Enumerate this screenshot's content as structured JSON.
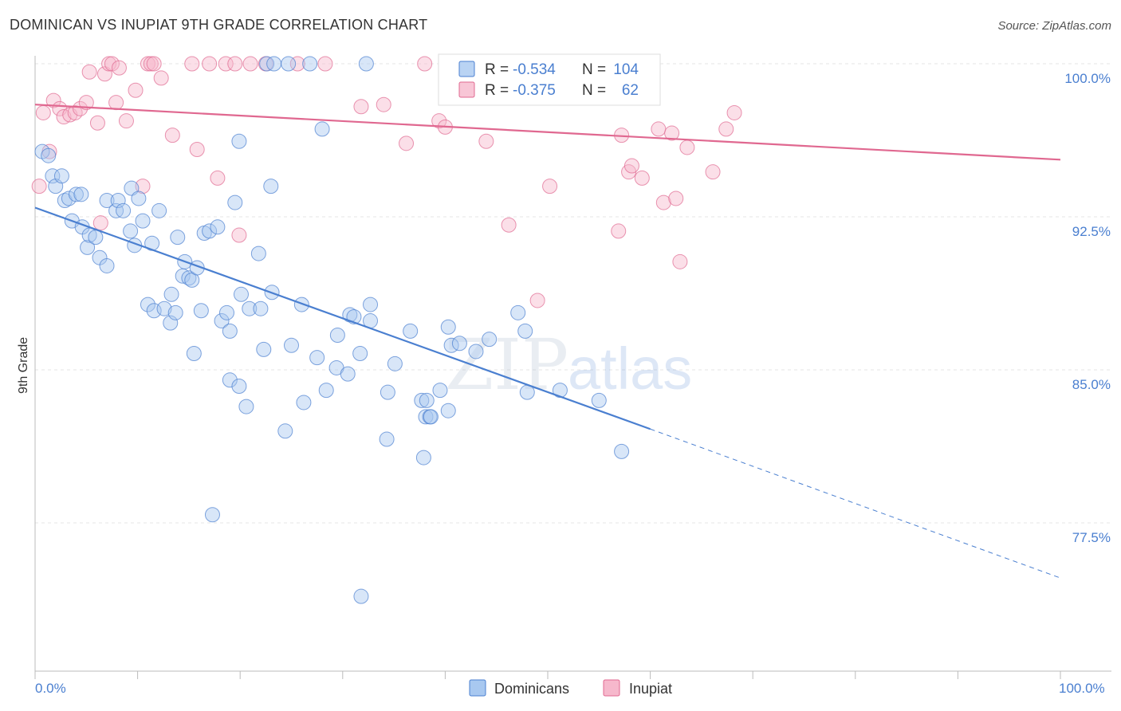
{
  "header": {
    "title": "DOMINICAN VS INUPIAT 9TH GRADE CORRELATION CHART",
    "source": "Source: ZipAtlas.com"
  },
  "watermark": {
    "zip": "ZIP",
    "atlas": "atlas"
  },
  "colors": {
    "dominicans": "#4a7fd0",
    "dominicans_fill": "#a8c8f0",
    "inupiat": "#e06890",
    "inupiat_fill": "#f6b8cc",
    "label_blue": "#4a7fd0"
  },
  "stats": {
    "dominicans": {
      "r_label": "R =",
      "r_value": "-0.534",
      "n_label": "N =",
      "n_value": "104"
    },
    "inupiat": {
      "r_label": "R =",
      "r_value": "-0.375",
      "n_label": "N =",
      "n_value": "62"
    }
  },
  "legend": {
    "dominicans": "Dominicans",
    "inupiat": "Inupiat"
  },
  "chart_data": {
    "type": "scatter",
    "title": "DOMINICAN VS INUPIAT 9TH GRADE CORRELATION CHART",
    "xlabel": "",
    "ylabel": "9th Grade",
    "xlim": [
      0,
      100
    ],
    "ylim": [
      70.0,
      100.5
    ],
    "x_tick_labels": [
      "0.0%",
      "100.0%"
    ],
    "y_ticks": [
      {
        "value": 100.0,
        "label": "100.0%"
      },
      {
        "value": 92.5,
        "label": "92.5%"
      },
      {
        "value": 85.0,
        "label": "85.0%"
      },
      {
        "value": 77.5,
        "label": "77.5%"
      }
    ],
    "grid": true,
    "legend_position": "bottom-center",
    "series": [
      {
        "name": "Dominicans",
        "trend": {
          "x0": 0,
          "y0": 92.95,
          "x1": 60,
          "y1": 82.1,
          "dash_to_x": 100,
          "dash_to_y": 74.8
        },
        "points": [
          [
            0.7,
            95.7
          ],
          [
            1.3,
            95.5
          ],
          [
            1.7,
            94.5
          ],
          [
            2.0,
            94.0
          ],
          [
            2.6,
            94.5
          ],
          [
            2.9,
            93.3
          ],
          [
            3.3,
            93.4
          ],
          [
            3.6,
            92.3
          ],
          [
            4.0,
            93.6
          ],
          [
            4.5,
            93.6
          ],
          [
            4.6,
            92.0
          ],
          [
            5.1,
            91.0
          ],
          [
            5.3,
            91.6
          ],
          [
            5.9,
            91.5
          ],
          [
            6.3,
            90.5
          ],
          [
            7.0,
            93.3
          ],
          [
            7.0,
            90.1
          ],
          [
            7.9,
            92.8
          ],
          [
            8.1,
            93.3
          ],
          [
            8.6,
            92.8
          ],
          [
            9.3,
            91.8
          ],
          [
            9.4,
            93.9
          ],
          [
            9.7,
            91.1
          ],
          [
            10.1,
            93.4
          ],
          [
            10.5,
            92.3
          ],
          [
            11.0,
            88.2
          ],
          [
            11.4,
            91.2
          ],
          [
            11.6,
            87.9
          ],
          [
            12.1,
            92.8
          ],
          [
            12.6,
            88.0
          ],
          [
            13.2,
            87.3
          ],
          [
            13.3,
            88.7
          ],
          [
            13.7,
            87.8
          ],
          [
            13.9,
            91.5
          ],
          [
            14.4,
            89.6
          ],
          [
            14.6,
            90.3
          ],
          [
            15.0,
            89.5
          ],
          [
            15.3,
            89.4
          ],
          [
            15.5,
            85.8
          ],
          [
            15.8,
            90.0
          ],
          [
            16.2,
            87.9
          ],
          [
            16.5,
            91.7
          ],
          [
            17.0,
            91.8
          ],
          [
            17.3,
            77.9
          ],
          [
            17.8,
            92.0
          ],
          [
            18.2,
            87.4
          ],
          [
            18.7,
            87.8
          ],
          [
            19.0,
            86.9
          ],
          [
            19.0,
            84.5
          ],
          [
            19.5,
            93.2
          ],
          [
            19.9,
            84.2
          ],
          [
            19.9,
            96.2
          ],
          [
            20.1,
            88.7
          ],
          [
            20.6,
            83.2
          ],
          [
            20.9,
            88.0
          ],
          [
            21.8,
            90.7
          ],
          [
            22.0,
            88.0
          ],
          [
            22.3,
            86.0
          ],
          [
            22.6,
            100.0
          ],
          [
            23.1,
            88.8
          ],
          [
            23.0,
            94.0
          ],
          [
            23.3,
            100.0
          ],
          [
            24.4,
            82.0
          ],
          [
            24.7,
            100.0
          ],
          [
            25.0,
            86.2
          ],
          [
            26.0,
            88.2
          ],
          [
            26.2,
            83.4
          ],
          [
            26.8,
            100.0
          ],
          [
            27.5,
            85.6
          ],
          [
            28.0,
            96.8
          ],
          [
            28.4,
            84.0
          ],
          [
            29.4,
            85.1
          ],
          [
            29.5,
            86.7
          ],
          [
            30.5,
            84.8
          ],
          [
            30.7,
            87.7
          ],
          [
            31.1,
            87.6
          ],
          [
            31.7,
            85.8
          ],
          [
            31.8,
            73.9
          ],
          [
            32.3,
            100.0
          ],
          [
            32.7,
            87.4
          ],
          [
            32.7,
            88.2
          ],
          [
            34.3,
            81.6
          ],
          [
            34.4,
            83.9
          ],
          [
            35.1,
            85.3
          ],
          [
            36.6,
            86.9
          ],
          [
            37.7,
            83.5
          ],
          [
            37.9,
            80.7
          ],
          [
            38.1,
            82.7
          ],
          [
            38.2,
            83.5
          ],
          [
            38.5,
            82.7
          ],
          [
            38.6,
            82.7
          ],
          [
            39.5,
            84.0
          ],
          [
            40.3,
            83.0
          ],
          [
            40.3,
            87.1
          ],
          [
            40.6,
            86.2
          ],
          [
            41.4,
            86.3
          ],
          [
            43.0,
            85.9
          ],
          [
            44.3,
            86.5
          ],
          [
            47.1,
            87.8
          ],
          [
            47.8,
            86.9
          ],
          [
            48.0,
            83.9
          ],
          [
            51.2,
            84.0
          ],
          [
            55.0,
            83.5
          ],
          [
            57.2,
            81.0
          ]
        ]
      },
      {
        "name": "Inupiat",
        "trend": {
          "x0": 0,
          "y0": 98.0,
          "x1": 100,
          "y1": 95.3
        },
        "points": [
          [
            0.4,
            94.0
          ],
          [
            0.8,
            97.6
          ],
          [
            1.4,
            95.7
          ],
          [
            1.8,
            98.2
          ],
          [
            2.4,
            97.8
          ],
          [
            2.8,
            97.4
          ],
          [
            3.4,
            97.5
          ],
          [
            3.9,
            97.6
          ],
          [
            4.4,
            97.8
          ],
          [
            5.0,
            98.1
          ],
          [
            5.3,
            99.6
          ],
          [
            6.1,
            97.1
          ],
          [
            6.4,
            92.2
          ],
          [
            6.8,
            99.5
          ],
          [
            7.2,
            100.0
          ],
          [
            7.5,
            100.0
          ],
          [
            7.9,
            98.1
          ],
          [
            8.2,
            99.8
          ],
          [
            8.9,
            97.2
          ],
          [
            9.8,
            98.7
          ],
          [
            10.5,
            94.0
          ],
          [
            11.0,
            100.0
          ],
          [
            11.3,
            100.0
          ],
          [
            11.6,
            100.0
          ],
          [
            12.3,
            99.3
          ],
          [
            13.4,
            96.5
          ],
          [
            15.3,
            100.0
          ],
          [
            15.8,
            95.8
          ],
          [
            17.0,
            100.0
          ],
          [
            17.8,
            94.4
          ],
          [
            18.6,
            100.0
          ],
          [
            19.5,
            100.0
          ],
          [
            19.9,
            91.6
          ],
          [
            21.0,
            100.0
          ],
          [
            22.5,
            100.0
          ],
          [
            25.6,
            100.0
          ],
          [
            28.3,
            100.0
          ],
          [
            31.8,
            97.9
          ],
          [
            34.0,
            98.0
          ],
          [
            36.2,
            96.1
          ],
          [
            38.0,
            100.0
          ],
          [
            39.4,
            97.2
          ],
          [
            40.0,
            96.9
          ],
          [
            44.0,
            96.2
          ],
          [
            46.2,
            92.1
          ],
          [
            49.0,
            88.4
          ],
          [
            50.2,
            94.0
          ],
          [
            55.4,
            100.0
          ],
          [
            56.9,
            91.8
          ],
          [
            57.2,
            96.5
          ],
          [
            57.9,
            94.7
          ],
          [
            58.2,
            95.0
          ],
          [
            59.2,
            94.4
          ],
          [
            60.8,
            96.8
          ],
          [
            61.3,
            93.2
          ],
          [
            62.1,
            96.6
          ],
          [
            62.5,
            93.4
          ],
          [
            62.9,
            90.3
          ],
          [
            63.6,
            95.9
          ],
          [
            66.1,
            94.7
          ],
          [
            67.4,
            96.8
          ],
          [
            68.2,
            97.6
          ]
        ]
      }
    ]
  }
}
